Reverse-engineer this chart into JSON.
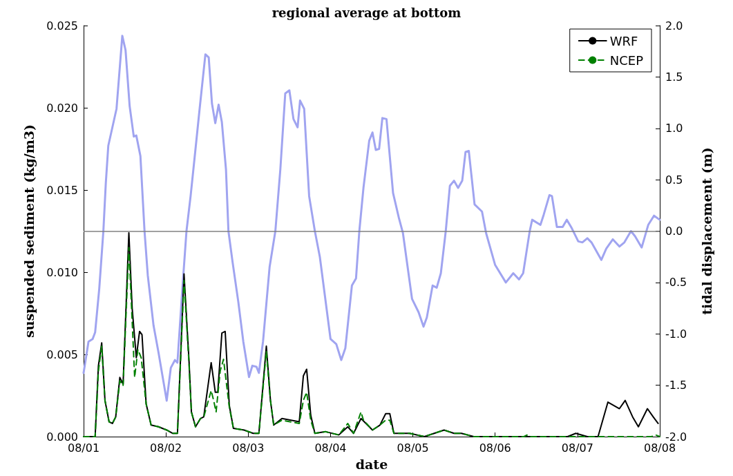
{
  "chart_data": {
    "type": "line",
    "title": "regional average at bottom",
    "xlabel": "date",
    "ylabel": "suspended sediment (kg/m3)",
    "y2label": "tidal displacement (m)",
    "xlim": [
      "--08-01",
      "--08-08"
    ],
    "xticks": [
      {
        "value": "--08-01",
        "label": "08/01"
      },
      {
        "value": "--08-02",
        "label": "08/02"
      },
      {
        "value": "--08-03",
        "label": "08/03"
      },
      {
        "value": "--08-04",
        "label": "08/04"
      },
      {
        "value": "--08-05",
        "label": "08/05"
      },
      {
        "value": "--08-06",
        "label": "08/06"
      },
      {
        "value": "--08-07",
        "label": "08/07"
      },
      {
        "value": "--08-08",
        "label": "08/08"
      }
    ],
    "ylim": [
      0,
      0.025
    ],
    "yticks": [
      {
        "value": 0,
        "label": "0.000"
      },
      {
        "value": 0.005,
        "label": "0.005"
      },
      {
        "value": 0.01,
        "label": "0.010"
      },
      {
        "value": 0.015,
        "label": "0.015"
      },
      {
        "value": 0.02,
        "label": "0.020"
      },
      {
        "value": 0.025,
        "label": "0.025"
      }
    ],
    "y2lim": [
      -2,
      2
    ],
    "y2ticks": [
      {
        "value": -2,
        "label": "-2.0"
      },
      {
        "value": -1.5,
        "label": "-1.5"
      },
      {
        "value": -1,
        "label": "-1.0"
      },
      {
        "value": -0.5,
        "label": "-0.5"
      },
      {
        "value": 0,
        "label": "0.0"
      },
      {
        "value": 0.5,
        "label": "0.5"
      },
      {
        "value": 1,
        "label": "1.0"
      },
      {
        "value": 1.5,
        "label": "1.5"
      },
      {
        "value": 2,
        "label": "2.0"
      }
    ],
    "grid": false,
    "legend": "top right",
    "marker": "none",
    "ref_lines": [
      {
        "axis": "y2",
        "value": 0,
        "color": "#808080"
      }
    ],
    "series": [
      {
        "color": "#a0a4f0",
        "axis": "y2",
        "line_style": "solid",
        "x": [
          "--08-01T00:00",
          "--08-01T01:26",
          "--08-01T02:38",
          "--08-01T03:22",
          "--08-01T04:34",
          "--08-01T05:46",
          "--08-01T06:29",
          "--08-01T07:12",
          "--08-01T08:24",
          "--08-01T09:36",
          "--08-01T11:17",
          "--08-01T12:14",
          "--08-01T13:26",
          "--08-01T14:38",
          "--08-01T15:22",
          "--08-01T16:34",
          "--08-01T17:46",
          "--08-01T18:43",
          "--08-01T20:24",
          "--08-01T21:50",
          "--08-02T00:14",
          "--08-02T01:26",
          "--08-02T02:38",
          "--08-02T03:22",
          "--08-02T04:48",
          "--08-02T06:00",
          "--08-02T07:12",
          "--08-02T08:38",
          "--08-02T09:50",
          "--08-02T11:31",
          "--08-02T12:29",
          "--08-02T13:26",
          "--08-02T14:24",
          "--08-02T15:22",
          "--08-02T16:19",
          "--08-02T17:31",
          "--08-02T18:14",
          "--08-02T19:26",
          "--08-02T21:07",
          "--08-02T22:34",
          "--08-03T00:14",
          "--08-03T01:12",
          "--08-03T02:24",
          "--08-03T03:07",
          "--08-03T04:19",
          "--08-03T06:14",
          "--08-03T07:55",
          "--08-03T09:22",
          "--08-03T10:48",
          "--08-03T12:00",
          "--08-03T13:12",
          "--08-03T14:24",
          "--08-03T15:07",
          "--08-03T16:19",
          "--08-03T17:46",
          "--08-03T19:26",
          "--08-03T20:53",
          "--08-04T00:00",
          "--08-04T01:41",
          "--08-04T03:07",
          "--08-04T04:19",
          "--08-04T06:14",
          "--08-04T07:26",
          "--08-04T08:24",
          "--08-04T09:36",
          "--08-04T11:17",
          "--08-04T12:14",
          "--08-04T13:12",
          "--08-04T14:10",
          "--08-04T15:07",
          "--08-04T16:19",
          "--08-04T18:14",
          "--08-04T19:55",
          "--08-04T21:07",
          "--08-04T23:46",
          "--08-05T01:41",
          "--08-05T03:07",
          "--08-05T04:05",
          "--08-05T05:46",
          "--08-05T06:58",
          "--08-05T08:10",
          "--08-05T09:36",
          "--08-05T10:48",
          "--08-05T12:00",
          "--08-05T13:12",
          "--08-05T14:24",
          "--08-05T15:22",
          "--08-05T16:19",
          "--08-05T18:00",
          "--08-05T20:10",
          "--08-05T21:22",
          "--08-06T00:00",
          "--08-06T03:07",
          "--08-06T05:17",
          "--08-06T06:58",
          "--08-06T08:10",
          "--08-06T10:05",
          "--08-06T10:48",
          "--08-06T13:12",
          "--08-06T14:10",
          "--08-06T15:50",
          "--08-06T16:34",
          "--08-06T18:00",
          "--08-06T19:41",
          "--08-06T20:53",
          "--08-06T22:19",
          "--08-07T00:14",
          "--08-07T01:26",
          "--08-07T02:53",
          "--08-07T04:05",
          "--08-07T06:58",
          "--08-07T08:24",
          "--08-07T10:19",
          "--08-07T12:14",
          "--08-07T13:41",
          "--08-07T15:36",
          "--08-07T16:48",
          "--08-07T18:43",
          "--08-07T20:38",
          "--08-07T22:19",
          "--08-08T00:00"
        ],
        "values": [
          -1.38,
          -1.075,
          -1.05,
          -0.985,
          -0.56,
          0.0,
          0.47,
          0.83,
          1.01,
          1.19,
          1.9,
          1.76,
          1.215,
          0.92,
          0.93,
          0.73,
          0.0,
          -0.43,
          -0.92,
          -1.18,
          -1.65,
          -1.33,
          -1.255,
          -1.28,
          -0.56,
          0.0,
          0.34,
          0.8,
          1.19,
          1.72,
          1.69,
          1.24,
          1.05,
          1.23,
          1.06,
          0.6,
          0.0,
          -0.3,
          -0.69,
          -1.075,
          -1.42,
          -1.31,
          -1.32,
          -1.38,
          -1.075,
          -0.35,
          0.0,
          0.6,
          1.34,
          1.37,
          1.09,
          1.01,
          1.27,
          1.19,
          0.34,
          0.0,
          -0.25,
          -1.05,
          -1.1,
          -1.255,
          -1.14,
          -0.53,
          -0.46,
          0.0,
          0.42,
          0.88,
          0.96,
          0.79,
          0.8,
          1.1,
          1.09,
          0.37,
          0.13,
          -0.02,
          -0.66,
          -0.79,
          -0.93,
          -0.84,
          -0.53,
          -0.55,
          -0.41,
          0.0,
          0.44,
          0.49,
          0.42,
          0.49,
          0.77,
          0.78,
          0.26,
          0.19,
          -0.02,
          -0.33,
          -0.5,
          -0.41,
          -0.47,
          -0.41,
          0.0,
          0.11,
          0.06,
          0.16,
          0.35,
          0.34,
          0.04,
          0.04,
          0.11,
          0.03,
          -0.1,
          -0.11,
          -0.07,
          -0.11,
          -0.28,
          -0.17,
          -0.08,
          -0.15,
          -0.11,
          0.0,
          -0.05,
          -0.16,
          0.06,
          0.15,
          0.11
        ]
      },
      {
        "name": "WRF",
        "color": "#000000",
        "line_style": "solid",
        "x": [
          "--08-01T00:00",
          "--08-01T03:22",
          "--08-01T04:19",
          "--08-01T05:17",
          "--08-01T06:14",
          "--08-01T07:26",
          "--08-01T08:24",
          "--08-01T09:22",
          "--08-01T10:34",
          "--08-01T11:31",
          "--08-01T13:12",
          "--08-01T14:10",
          "--08-01T15:22",
          "--08-01T16:19",
          "--08-01T17:02",
          "--08-01T18:14",
          "--08-01T19:41",
          "--08-01T21:50",
          "--08-02T00:14",
          "--08-02T01:55",
          "--08-02T03:22",
          "--08-02T05:17",
          "--08-02T06:43",
          "--08-02T07:26",
          "--08-02T08:38",
          "--08-02T10:05",
          "--08-02T11:02",
          "--08-02T13:12",
          "--08-02T14:24",
          "--08-02T15:07",
          "--08-02T16:19",
          "--08-02T17:17",
          "--08-02T18:29",
          "--08-02T19:41",
          "--08-02T22:48",
          "--08-03T01:26",
          "--08-03T03:07",
          "--08-03T05:17",
          "--08-03T06:29",
          "--08-03T07:26",
          "--08-03T09:50",
          "--08-03T14:53",
          "--08-03T16:05",
          "--08-03T17:02",
          "--08-03T18:14",
          "--08-03T19:26",
          "--08-03T22:34",
          "--08-04T02:24",
          "--08-04T05:02",
          "--08-04T06:43",
          "--08-04T08:53",
          "--08-04T12:14",
          "--08-04T14:24",
          "--08-04T16:05",
          "--08-04T17:17",
          "--08-04T18:29",
          "--08-04T23:02",
          "--08-05T03:22",
          "--08-05T09:07",
          "--08-05T12:00",
          "--08-05T14:10",
          "--08-05T17:46",
          "--08-06T21:07",
          "--08-06T23:31",
          "--08-07T02:53",
          "--08-07T06:00",
          "--08-07T08:53",
          "--08-07T12:14",
          "--08-07T13:55",
          "--08-07T16:05",
          "--08-07T17:46",
          "--08-07T20:24",
          "--08-07T22:05",
          "--08-07T23:31"
        ],
        "values": [
          0,
          0,
          0.0043,
          0.0057,
          0.0022,
          0.0009,
          0.0008,
          0.0012,
          0.0036,
          0.0032,
          0.0124,
          0.0078,
          0.0048,
          0.0064,
          0.0062,
          0.002,
          0.0007,
          0.0006,
          0.0004,
          0.0002,
          0.0002,
          0.0099,
          0.0047,
          0.0015,
          0.0006,
          0.0011,
          0.0012,
          0.0045,
          0.0027,
          0.0027,
          0.0063,
          0.0064,
          0.0019,
          0.0005,
          0.0004,
          0.0002,
          0.0002,
          0.0055,
          0.0022,
          0.0007,
          0.0011,
          0.0009,
          0.0037,
          0.0041,
          0.0013,
          0.0002,
          0.0003,
          0.0001,
          0.0006,
          0.0002,
          0.0011,
          0.0004,
          0.0007,
          0.0014,
          0.0014,
          0.0002,
          0.0002,
          0,
          0.0004,
          0.0002,
          0.0002,
          0,
          0,
          0.0002,
          0,
          0,
          0.0021,
          0.0017,
          0.0022,
          0.0012,
          0.0006,
          0.0017,
          0.0012,
          0.0008
        ]
      },
      {
        "name": "NCEP",
        "color": "#008000",
        "line_style": "dashed",
        "x": [
          "--08-01T00:00",
          "--08-01T03:22",
          "--08-01T04:19",
          "--08-01T05:17",
          "--08-01T06:14",
          "--08-01T07:26",
          "--08-01T08:24",
          "--08-01T09:22",
          "--08-01T10:34",
          "--08-01T11:31",
          "--08-01T13:12",
          "--08-01T14:10",
          "--08-01T14:53",
          "--08-01T15:50",
          "--08-01T16:48",
          "--08-01T18:14",
          "--08-01T19:41",
          "--08-01T21:50",
          "--08-02T00:14",
          "--08-02T01:55",
          "--08-02T03:22",
          "--08-02T05:17",
          "--08-02T06:43",
          "--08-02T07:26",
          "--08-02T08:38",
          "--08-02T10:05",
          "--08-02T11:02",
          "--08-02T13:12",
          "--08-02T13:55",
          "--08-02T14:38",
          "--08-02T15:50",
          "--08-02T16:48",
          "--08-02T18:29",
          "--08-02T19:41",
          "--08-02T22:48",
          "--08-03T01:26",
          "--08-03T03:07",
          "--08-03T05:17",
          "--08-03T06:29",
          "--08-03T07:26",
          "--08-03T09:50",
          "--08-03T14:53",
          "--08-03T16:05",
          "--08-03T17:02",
          "--08-03T18:14",
          "--08-03T19:26",
          "--08-03T22:34",
          "--08-04T02:24",
          "--08-04T05:02",
          "--08-04T06:43",
          "--08-04T08:53",
          "--08-04T09:36",
          "--08-04T12:14",
          "--08-04T14:24",
          "--08-04T16:05",
          "--08-04T17:17",
          "--08-04T18:29",
          "--08-04T23:02",
          "--08-05T03:22",
          "--08-05T09:07",
          "--08-05T12:00",
          "--08-05T14:10",
          "--08-05T17:46",
          "--08-06T08:24",
          "--08-06T09:22",
          "--08-06T10:19",
          "--08-07T21:36",
          "--08-07T22:48",
          "--08-08T00:00"
        ],
        "values": [
          0,
          0,
          0.004,
          0.0055,
          0.0022,
          0.0009,
          0.0008,
          0.0012,
          0.0034,
          0.0031,
          0.0115,
          0.007,
          0.0036,
          0.0053,
          0.0048,
          0.002,
          0.0007,
          0.0006,
          0.0004,
          0.0002,
          0.0002,
          0.0095,
          0.0045,
          0.0015,
          0.0006,
          0.0011,
          0.0012,
          0.0028,
          0.0022,
          0.0015,
          0.004,
          0.0047,
          0.0018,
          0.0005,
          0.0004,
          0.0002,
          0.0002,
          0.0052,
          0.0022,
          0.0007,
          0.001,
          0.0008,
          0.0022,
          0.0027,
          0.001,
          0.0002,
          0.0003,
          0.0001,
          0.0008,
          0.0002,
          0.0015,
          0.001,
          0.0004,
          0.0007,
          0.001,
          0.001,
          0.0002,
          0.0002,
          0,
          0.0004,
          0.0002,
          0.0002,
          0,
          0,
          0.0001,
          0,
          0,
          0.0001,
          0
        ]
      }
    ]
  }
}
